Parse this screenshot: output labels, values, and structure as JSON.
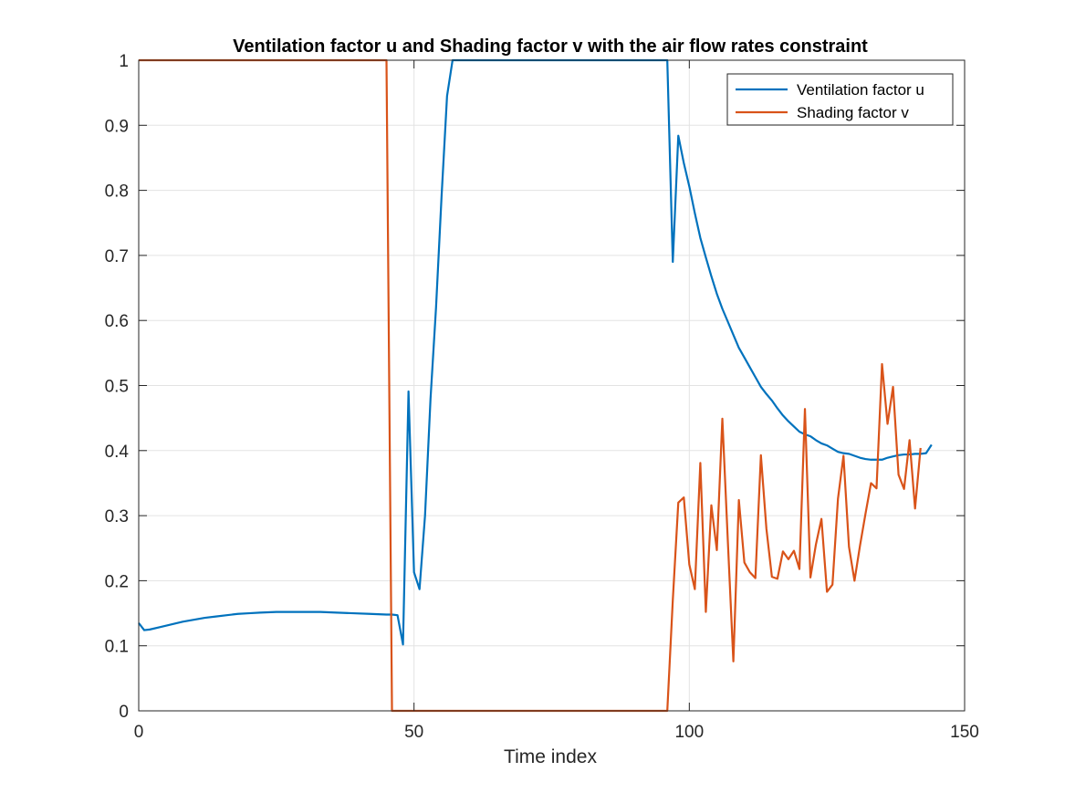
{
  "chart_data": {
    "type": "line",
    "title": "Ventilation factor u and Shading factor v with the air flow rates constraint",
    "xlabel": "Time index",
    "ylabel": "",
    "xlim": [
      0,
      150
    ],
    "ylim": [
      0,
      1
    ],
    "xticks": [
      "0",
      "50",
      "100",
      "150"
    ],
    "yticks": [
      "0",
      "0.1",
      "0.2",
      "0.3",
      "0.4",
      "0.5",
      "0.6",
      "0.7",
      "0.8",
      "0.9",
      "1"
    ],
    "grid": true,
    "legend_position": "top-right",
    "series": [
      {
        "name": "Ventilation factor u",
        "color": "#0072BD",
        "points": [
          [
            0,
            0.135
          ],
          [
            1,
            0.124
          ],
          [
            2,
            0.125
          ],
          [
            4,
            0.129
          ],
          [
            6,
            0.133
          ],
          [
            8,
            0.137
          ],
          [
            10,
            0.14
          ],
          [
            12,
            0.143
          ],
          [
            14,
            0.145
          ],
          [
            16,
            0.147
          ],
          [
            18,
            0.149
          ],
          [
            20,
            0.15
          ],
          [
            22,
            0.151
          ],
          [
            25,
            0.152
          ],
          [
            28,
            0.152
          ],
          [
            30,
            0.152
          ],
          [
            33,
            0.152
          ],
          [
            36,
            0.151
          ],
          [
            39,
            0.15
          ],
          [
            42,
            0.149
          ],
          [
            45,
            0.148
          ],
          [
            46,
            0.148
          ],
          [
            47,
            0.147
          ],
          [
            48,
            0.102
          ],
          [
            49,
            0.491
          ],
          [
            50,
            0.213
          ],
          [
            51,
            0.187
          ],
          [
            52,
            0.3
          ],
          [
            53,
            0.48
          ],
          [
            54,
            0.62
          ],
          [
            55,
            0.79
          ],
          [
            56,
            0.945
          ],
          [
            57,
            1.0
          ],
          [
            60,
            1.0
          ],
          [
            70,
            1.0
          ],
          [
            80,
            1.0
          ],
          [
            90,
            1.0
          ],
          [
            96,
            1.0
          ],
          [
            97,
            0.69
          ],
          [
            98,
            0.884
          ],
          [
            99,
            0.842
          ],
          [
            100,
            0.806
          ],
          [
            101,
            0.765
          ],
          [
            102,
            0.727
          ],
          [
            103,
            0.697
          ],
          [
            104,
            0.668
          ],
          [
            105,
            0.641
          ],
          [
            106,
            0.618
          ],
          [
            107,
            0.598
          ],
          [
            108,
            0.578
          ],
          [
            109,
            0.558
          ],
          [
            110,
            0.543
          ],
          [
            111,
            0.528
          ],
          [
            112,
            0.513
          ],
          [
            113,
            0.498
          ],
          [
            114,
            0.487
          ],
          [
            115,
            0.477
          ],
          [
            116,
            0.465
          ],
          [
            117,
            0.454
          ],
          [
            118,
            0.445
          ],
          [
            119,
            0.437
          ],
          [
            120,
            0.429
          ],
          [
            121,
            0.425
          ],
          [
            122,
            0.422
          ],
          [
            123,
            0.416
          ],
          [
            124,
            0.411
          ],
          [
            125,
            0.408
          ],
          [
            126,
            0.403
          ],
          [
            127,
            0.398
          ],
          [
            128,
            0.396
          ],
          [
            129,
            0.395
          ],
          [
            130,
            0.392
          ],
          [
            131,
            0.389
          ],
          [
            132,
            0.387
          ],
          [
            133,
            0.386
          ],
          [
            134,
            0.386
          ],
          [
            135,
            0.386
          ],
          [
            136,
            0.389
          ],
          [
            137,
            0.391
          ],
          [
            138,
            0.393
          ],
          [
            139,
            0.394
          ],
          [
            140,
            0.394
          ],
          [
            141,
            0.395
          ],
          [
            142,
            0.395
          ],
          [
            143,
            0.396
          ],
          [
            144,
            0.409
          ]
        ]
      },
      {
        "name": "Shading factor v",
        "color": "#D95319",
        "points": [
          [
            0,
            1.0
          ],
          [
            10,
            1.0
          ],
          [
            20,
            1.0
          ],
          [
            30,
            1.0
          ],
          [
            40,
            1.0
          ],
          [
            45,
            1.0
          ],
          [
            46,
            0.0
          ],
          [
            50,
            0.0
          ],
          [
            60,
            0.0
          ],
          [
            70,
            0.0
          ],
          [
            80,
            0.0
          ],
          [
            90,
            0.0
          ],
          [
            96,
            0.0
          ],
          [
            97,
            0.17
          ],
          [
            98,
            0.32
          ],
          [
            99,
            0.328
          ],
          [
            100,
            0.225
          ],
          [
            101,
            0.187
          ],
          [
            102,
            0.381
          ],
          [
            103,
            0.152
          ],
          [
            104,
            0.316
          ],
          [
            105,
            0.247
          ],
          [
            106,
            0.449
          ],
          [
            107,
            0.26
          ],
          [
            108,
            0.076
          ],
          [
            109,
            0.324
          ],
          [
            110,
            0.228
          ],
          [
            111,
            0.213
          ],
          [
            112,
            0.204
          ],
          [
            113,
            0.393
          ],
          [
            114,
            0.28
          ],
          [
            115,
            0.206
          ],
          [
            116,
            0.203
          ],
          [
            117,
            0.245
          ],
          [
            118,
            0.233
          ],
          [
            119,
            0.246
          ],
          [
            120,
            0.218
          ],
          [
            121,
            0.464
          ],
          [
            122,
            0.205
          ],
          [
            123,
            0.256
          ],
          [
            124,
            0.295
          ],
          [
            125,
            0.183
          ],
          [
            126,
            0.194
          ],
          [
            127,
            0.326
          ],
          [
            128,
            0.392
          ],
          [
            129,
            0.252
          ],
          [
            130,
            0.2
          ],
          [
            131,
            0.254
          ],
          [
            132,
            0.303
          ],
          [
            133,
            0.35
          ],
          [
            134,
            0.342
          ],
          [
            135,
            0.533
          ],
          [
            136,
            0.441
          ],
          [
            137,
            0.498
          ],
          [
            138,
            0.363
          ],
          [
            139,
            0.341
          ],
          [
            140,
            0.416
          ],
          [
            141,
            0.311
          ],
          [
            142,
            0.404
          ]
        ]
      }
    ]
  }
}
